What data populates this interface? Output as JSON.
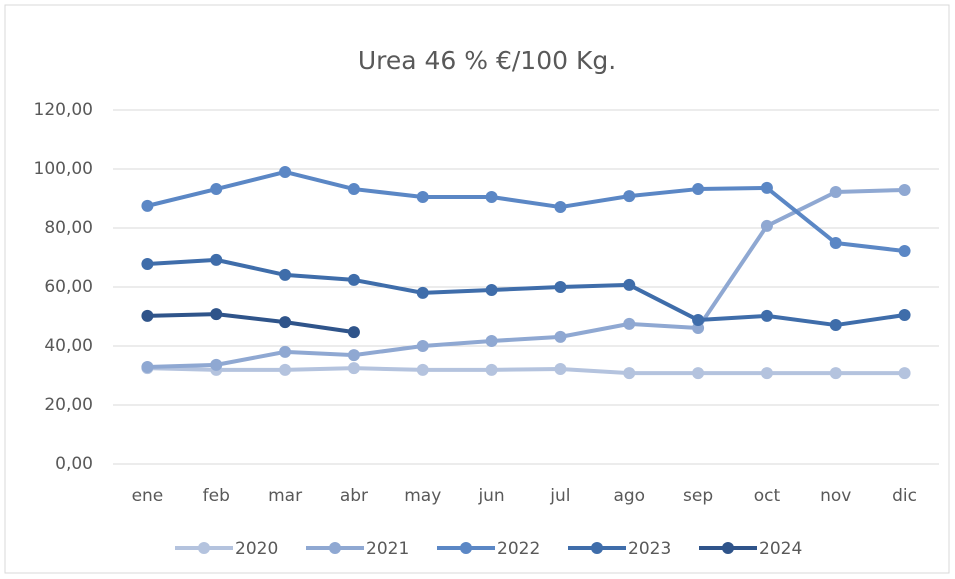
{
  "chart_data": {
    "type": "line",
    "title": "Urea 46 % €/100 Kg.",
    "categories": [
      "ene",
      "feb",
      "mar",
      "abr",
      "may",
      "jun",
      "jul",
      "ago",
      "sep",
      "oct",
      "nov",
      "dic"
    ],
    "series": [
      {
        "name": "2020",
        "color": "#b4c3de",
        "values": [
          32.5,
          31.9,
          31.9,
          32.5,
          31.9,
          31.9,
          32.2,
          30.8,
          30.8,
          30.8,
          30.8,
          30.8
        ]
      },
      {
        "name": "2021",
        "color": "#8fa8d2",
        "values": [
          32.9,
          33.6,
          38.0,
          36.9,
          40.0,
          41.7,
          43.1,
          47.5,
          46.1,
          80.7,
          92.2,
          92.9
        ]
      },
      {
        "name": "2022",
        "color": "#5b87c5",
        "values": [
          87.5,
          93.2,
          99.0,
          93.2,
          90.5,
          90.5,
          87.1,
          90.8,
          93.2,
          93.6,
          74.9,
          72.2
        ]
      },
      {
        "name": "2023",
        "color": "#3f6daa",
        "values": [
          67.8,
          69.2,
          64.1,
          62.4,
          58.0,
          59.0,
          60.0,
          60.7,
          48.8,
          50.2,
          47.1,
          50.5
        ]
      },
      {
        "name": "2024",
        "color": "#2f548a",
        "values": [
          50.2,
          50.8,
          48.1,
          44.7,
          null,
          null,
          null,
          null,
          null,
          null,
          null,
          null
        ]
      }
    ],
    "ylim": [
      0,
      120
    ],
    "yticks": [
      {
        "value": 0,
        "label": "0,00"
      },
      {
        "value": 20,
        "label": "20,00"
      },
      {
        "value": 40,
        "label": "40,00"
      },
      {
        "value": 60,
        "label": "60,00"
      },
      {
        "value": 80,
        "label": "80,00"
      },
      {
        "value": 100,
        "label": "100,00"
      },
      {
        "value": 120,
        "label": "120,00"
      }
    ],
    "grid": true,
    "legend": "bottom"
  }
}
